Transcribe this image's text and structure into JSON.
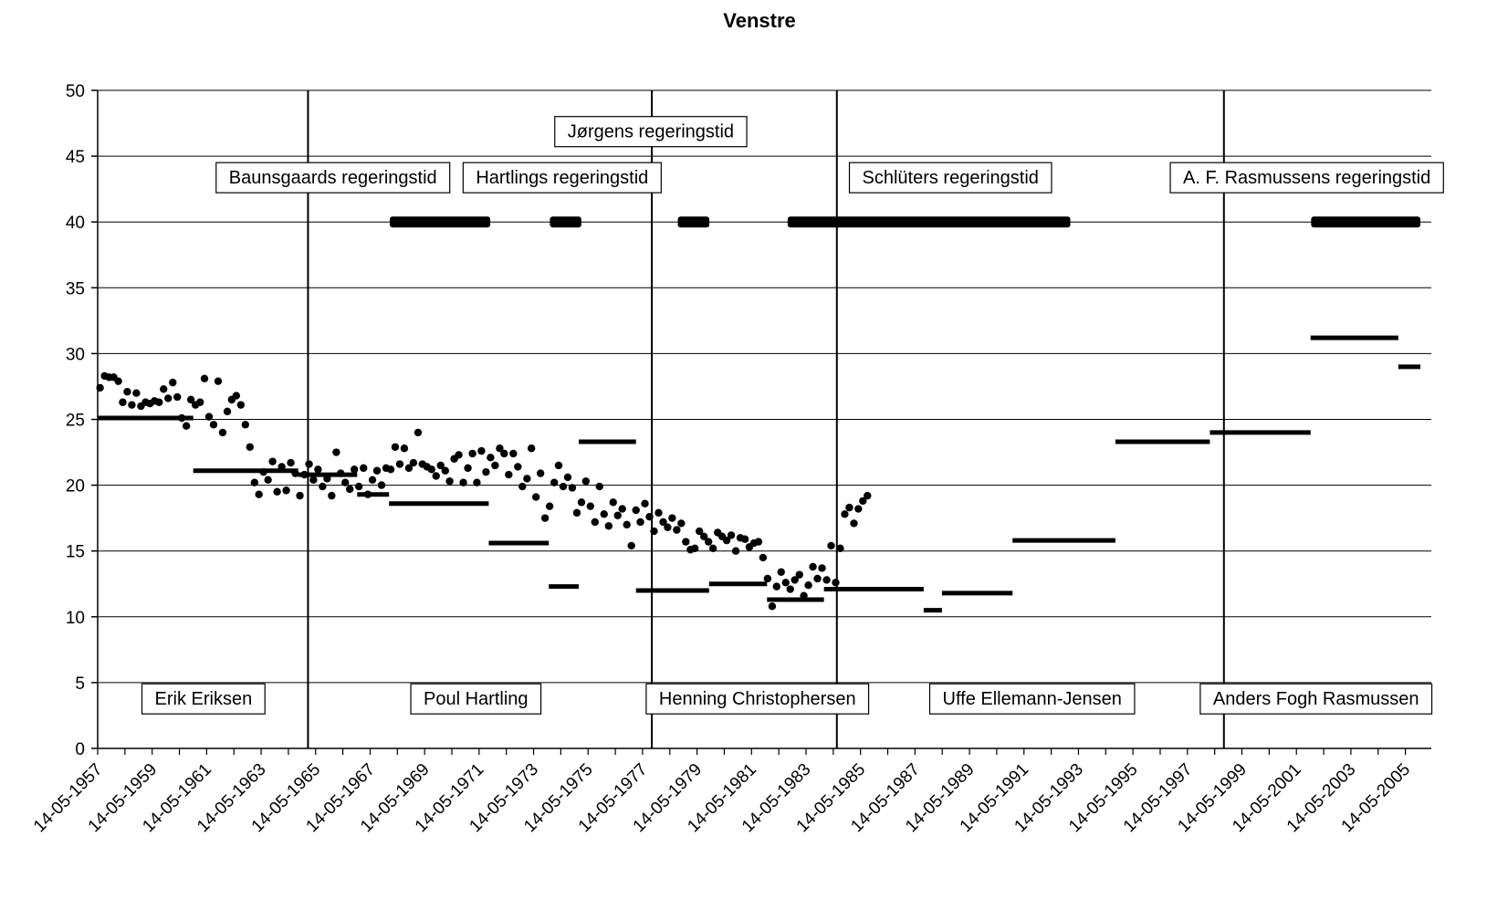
{
  "chart_data": {
    "type": "scatter",
    "title": "Venstre",
    "xlabel": "",
    "ylabel": "",
    "ylim": [
      0,
      50
    ],
    "yticks": [
      0,
      5,
      10,
      15,
      20,
      25,
      30,
      35,
      40,
      45,
      50
    ],
    "xlim": [
      "1957-05-14",
      "2006-05-14"
    ],
    "xtick_labels": [
      "14-05-1957",
      "14-05-1959",
      "14-05-1961",
      "14-05-1963",
      "14-05-1965",
      "14-05-1967",
      "14-05-1969",
      "14-05-1971",
      "14-05-1973",
      "14-05-1975",
      "14-05-1977",
      "14-05-1979",
      "14-05-1981",
      "14-05-1983",
      "14-05-1985",
      "14-05-1987",
      "14-05-1989",
      "14-05-1991",
      "14-05-1993",
      "14-05-1995",
      "14-05-1997",
      "14-05-1999",
      "14-05-2001",
      "14-05-2003",
      "14-05-2005"
    ],
    "xtick_dates": [
      "1957-05-14",
      "1959-05-14",
      "1961-05-14",
      "1963-05-14",
      "1965-05-14",
      "1967-05-14",
      "1969-05-14",
      "1971-05-14",
      "1973-05-14",
      "1975-05-14",
      "1977-05-14",
      "1979-05-14",
      "1981-05-14",
      "1983-05-14",
      "1985-05-14",
      "1987-05-14",
      "1989-05-14",
      "1991-05-14",
      "1993-05-14",
      "1995-05-14",
      "1997-05-14",
      "1999-05-14",
      "2001-05-14",
      "2003-05-14",
      "2005-05-14"
    ],
    "grid": true,
    "vertical_lines": [
      "1965-02-01",
      "1977-09-15",
      "1984-07-01",
      "1998-09-15"
    ],
    "government_bars": {
      "value": 40,
      "periods": [
        [
          "1968-02-02",
          "1971-10-11"
        ],
        [
          "1973-12-19",
          "1975-02-13"
        ],
        [
          "1978-08-30",
          "1979-10-26"
        ],
        [
          "1982-09-10",
          "1993-01-25"
        ],
        [
          "2001-11-27",
          "2006-05-14"
        ]
      ]
    },
    "regime_labels": [
      {
        "text": "Jørgens regeringstid",
        "date": "1977-09-01",
        "value": 46.9
      },
      {
        "text": "Baunsgaards regeringstid",
        "date": "1966-01-01",
        "value": 43.4
      },
      {
        "text": "Hartlings regeringstid",
        "date": "1974-06-01",
        "value": 43.4
      },
      {
        "text": "Schlüters regeringstid",
        "date": "1988-09-01",
        "value": 43.4
      },
      {
        "text": "A. F. Rasmussens regeringstid",
        "date": "2001-10-01",
        "value": 43.4
      }
    ],
    "leader_labels": [
      {
        "text": "Erik Eriksen",
        "date": "1961-04-01",
        "value": 3.8
      },
      {
        "text": "Poul Hartling",
        "date": "1971-04-01",
        "value": 3.8
      },
      {
        "text": "Henning Christophersen",
        "date": "1981-08-01",
        "value": 3.8
      },
      {
        "text": "Uffe Ellemann-Jensen",
        "date": "1991-09-01",
        "value": 3.8
      },
      {
        "text": "Anders Fogh Rasmussen",
        "date": "2002-02-01",
        "value": 3.8
      }
    ],
    "election_results": [
      {
        "from": "1957-05-14",
        "to": "1960-11-15",
        "value": 25.1
      },
      {
        "from": "1960-11-15",
        "to": "1964-09-22",
        "value": 21.1
      },
      {
        "from": "1964-09-22",
        "to": "1966-11-22",
        "value": 20.8
      },
      {
        "from": "1966-11-22",
        "to": "1968-01-23",
        "value": 19.3
      },
      {
        "from": "1968-01-23",
        "to": "1971-09-21",
        "value": 18.6
      },
      {
        "from": "1971-09-21",
        "to": "1973-12-04",
        "value": 15.6
      },
      {
        "from": "1973-12-04",
        "to": "1975-01-09",
        "value": 12.3
      },
      {
        "from": "1975-01-09",
        "to": "1977-02-15",
        "value": 23.3
      },
      {
        "from": "1977-02-15",
        "to": "1979-10-23",
        "value": 12.0
      },
      {
        "from": "1979-10-23",
        "to": "1981-12-08",
        "value": 12.5
      },
      {
        "from": "1981-12-08",
        "to": "1984-01-10",
        "value": 11.3
      },
      {
        "from": "1984-01-10",
        "to": "1987-09-08",
        "value": 12.1
      },
      {
        "from": "1987-09-08",
        "to": "1988-05-10",
        "value": 10.5
      },
      {
        "from": "1988-05-10",
        "to": "1990-12-12",
        "value": 11.8
      },
      {
        "from": "1990-12-12",
        "to": "1994-09-21",
        "value": 15.8
      },
      {
        "from": "1994-09-21",
        "to": "1998-03-11",
        "value": 23.3
      },
      {
        "from": "1998-03-11",
        "to": "2001-11-20",
        "value": 24.0
      },
      {
        "from": "2001-11-20",
        "to": "2005-02-08",
        "value": 31.2
      },
      {
        "from": "2005-02-08",
        "to": "2006-05-14",
        "value": 29.0
      }
    ],
    "series": [
      {
        "values_note_free": true,
        "points": [
          [
            "1957-06",
            27.4
          ],
          [
            "1957-08",
            28.3
          ],
          [
            "1957-10",
            28.2
          ],
          [
            "1957-12",
            28.2
          ],
          [
            "1958-02",
            27.9
          ],
          [
            "1958-04",
            26.3
          ],
          [
            "1958-06",
            27.1
          ],
          [
            "1958-08",
            26.1
          ],
          [
            "1958-10",
            27.0
          ],
          [
            "1958-12",
            26.0
          ],
          [
            "1959-02",
            26.3
          ],
          [
            "1959-04",
            26.2
          ],
          [
            "1959-06",
            26.4
          ],
          [
            "1959-08",
            26.3
          ],
          [
            "1959-10",
            27.3
          ],
          [
            "1959-12",
            26.6
          ],
          [
            "1960-02",
            27.8
          ],
          [
            "1960-04",
            26.7
          ],
          [
            "1960-06",
            25.1
          ],
          [
            "1960-08",
            24.5
          ],
          [
            "1960-10",
            26.5
          ],
          [
            "1960-12",
            26.1
          ],
          [
            "1961-02",
            26.3
          ],
          [
            "1961-04",
            28.1
          ],
          [
            "1961-06",
            25.2
          ],
          [
            "1961-08",
            24.6
          ],
          [
            "1961-10",
            27.9
          ],
          [
            "1961-12",
            24.0
          ],
          [
            "1962-02",
            25.6
          ],
          [
            "1962-04",
            26.5
          ],
          [
            "1962-06",
            26.8
          ],
          [
            "1962-08",
            26.1
          ],
          [
            "1962-10",
            24.6
          ],
          [
            "1962-12",
            22.9
          ],
          [
            "1963-02",
            20.2
          ],
          [
            "1963-04",
            19.3
          ],
          [
            "1963-06",
            21.0
          ],
          [
            "1963-08",
            20.4
          ],
          [
            "1963-10",
            21.8
          ],
          [
            "1963-12",
            19.5
          ],
          [
            "1964-02",
            21.4
          ],
          [
            "1964-04",
            19.6
          ],
          [
            "1964-06",
            21.7
          ],
          [
            "1964-08",
            20.9
          ],
          [
            "1964-10",
            19.2
          ],
          [
            "1964-12",
            20.8
          ],
          [
            "1965-02",
            21.6
          ],
          [
            "1965-04",
            20.4
          ],
          [
            "1965-06",
            21.2
          ],
          [
            "1965-08",
            19.9
          ],
          [
            "1965-10",
            20.5
          ],
          [
            "1965-12",
            19.2
          ],
          [
            "1966-02",
            22.5
          ],
          [
            "1966-04",
            20.9
          ],
          [
            "1966-06",
            20.2
          ],
          [
            "1966-08",
            19.7
          ],
          [
            "1966-10",
            21.2
          ],
          [
            "1966-12",
            19.9
          ],
          [
            "1967-02",
            21.3
          ],
          [
            "1967-04",
            19.3
          ],
          [
            "1967-06",
            20.4
          ],
          [
            "1967-08",
            21.1
          ],
          [
            "1967-10",
            20.0
          ],
          [
            "1967-12",
            21.3
          ],
          [
            "1968-02",
            21.2
          ],
          [
            "1968-04",
            22.9
          ],
          [
            "1968-06",
            21.6
          ],
          [
            "1968-08",
            22.8
          ],
          [
            "1968-10",
            21.3
          ],
          [
            "1968-12",
            21.7
          ],
          [
            "1969-02",
            24.0
          ],
          [
            "1969-04",
            21.6
          ],
          [
            "1969-06",
            21.4
          ],
          [
            "1969-08",
            21.2
          ],
          [
            "1969-10",
            20.7
          ],
          [
            "1969-12",
            21.5
          ],
          [
            "1970-02",
            21.1
          ],
          [
            "1970-04",
            20.3
          ],
          [
            "1970-06",
            22.0
          ],
          [
            "1970-08",
            22.3
          ],
          [
            "1970-10",
            20.2
          ],
          [
            "1970-12",
            21.3
          ],
          [
            "1971-02",
            22.4
          ],
          [
            "1971-04",
            20.2
          ],
          [
            "1971-06",
            22.6
          ],
          [
            "1971-08",
            21.0
          ],
          [
            "1971-10",
            22.1
          ],
          [
            "1971-12",
            21.5
          ],
          [
            "1972-02",
            22.8
          ],
          [
            "1972-04",
            22.4
          ],
          [
            "1972-06",
            20.8
          ],
          [
            "1972-08",
            22.4
          ],
          [
            "1972-10",
            21.4
          ],
          [
            "1972-12",
            19.9
          ],
          [
            "1973-02",
            20.5
          ],
          [
            "1973-04",
            22.8
          ],
          [
            "1973-06",
            19.1
          ],
          [
            "1973-08",
            20.9
          ],
          [
            "1973-10",
            17.5
          ],
          [
            "1973-12",
            18.4
          ],
          [
            "1974-02",
            20.2
          ],
          [
            "1974-04",
            21.5
          ],
          [
            "1974-06",
            19.9
          ],
          [
            "1974-08",
            20.6
          ],
          [
            "1974-10",
            19.8
          ],
          [
            "1974-12",
            17.9
          ],
          [
            "1975-02",
            18.7
          ],
          [
            "1975-04",
            20.3
          ],
          [
            "1975-06",
            18.4
          ],
          [
            "1975-08",
            17.2
          ],
          [
            "1975-10",
            19.9
          ],
          [
            "1975-12",
            17.8
          ],
          [
            "1976-02",
            16.9
          ],
          [
            "1976-04",
            18.7
          ],
          [
            "1976-06",
            17.7
          ],
          [
            "1976-08",
            18.2
          ],
          [
            "1976-10",
            17.0
          ],
          [
            "1976-12",
            15.4
          ],
          [
            "1977-02",
            18.1
          ],
          [
            "1977-04",
            17.2
          ],
          [
            "1977-06",
            18.6
          ],
          [
            "1977-08",
            17.6
          ],
          [
            "1977-10",
            16.5
          ],
          [
            "1977-12",
            17.9
          ],
          [
            "1978-02",
            17.2
          ],
          [
            "1978-04",
            16.8
          ],
          [
            "1978-06",
            17.5
          ],
          [
            "1978-08",
            16.6
          ],
          [
            "1978-10",
            17.1
          ],
          [
            "1978-12",
            15.7
          ],
          [
            "1979-02",
            15.1
          ],
          [
            "1979-04",
            15.2
          ],
          [
            "1979-06",
            16.5
          ],
          [
            "1979-08",
            16.1
          ],
          [
            "1979-10",
            15.7
          ],
          [
            "1979-12",
            15.2
          ],
          [
            "1980-02",
            16.4
          ],
          [
            "1980-04",
            16.1
          ],
          [
            "1980-06",
            15.8
          ],
          [
            "1980-08",
            16.2
          ],
          [
            "1980-10",
            15.0
          ],
          [
            "1980-12",
            16.0
          ],
          [
            "1981-02",
            15.9
          ],
          [
            "1981-04",
            15.3
          ],
          [
            "1981-06",
            15.6
          ],
          [
            "1981-08",
            15.7
          ],
          [
            "1981-10",
            14.5
          ],
          [
            "1981-12",
            12.9
          ],
          [
            "1982-02",
            10.8
          ],
          [
            "1982-04",
            12.3
          ],
          [
            "1982-06",
            13.4
          ],
          [
            "1982-08",
            12.6
          ],
          [
            "1982-10",
            12.1
          ],
          [
            "1982-12",
            12.8
          ],
          [
            "1983-02",
            13.2
          ],
          [
            "1983-04",
            11.6
          ],
          [
            "1983-06",
            12.4
          ],
          [
            "1983-08",
            13.8
          ],
          [
            "1983-10",
            12.9
          ],
          [
            "1983-12",
            13.7
          ],
          [
            "1984-02",
            12.8
          ],
          [
            "1984-04",
            15.4
          ],
          [
            "1984-06",
            12.6
          ],
          [
            "1984-08",
            15.2
          ],
          [
            "1984-10",
            17.8
          ],
          [
            "1984-12",
            18.3
          ],
          [
            "1985-02",
            17.1
          ],
          [
            "1985-04",
            18.2
          ],
          [
            "1985-06",
            18.8
          ],
          [
            "1985-08",
            19.2
          ]
        ]
      }
    ]
  }
}
